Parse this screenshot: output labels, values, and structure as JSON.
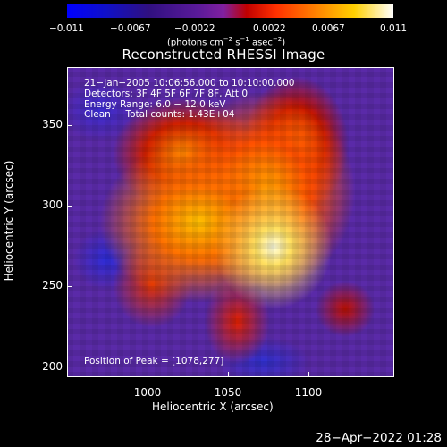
{
  "colorbar": {
    "ticks": [
      "−0.011",
      "−0.0067",
      "−0.0022",
      "0.0022",
      "0.0067",
      "0.011"
    ],
    "units_prefix": "(photons cm",
    "units_sup1": "−2",
    "units_mid": " s",
    "units_sup2": "−1",
    "units_mid2": " asec",
    "units_sup3": "−2",
    "units_suffix": ")"
  },
  "title": "Reconstructed RHESSI Image",
  "info": {
    "line1": "21−Jan−2005 10:06:56.000 to 10:10:00.000",
    "line2": "Detectors: 3F 4F 5F 6F 7F 8F, Att 0",
    "line3": "Energy Range: 6.0 − 12.0 keV",
    "line4": "Clean     Total counts: 1.43E+04"
  },
  "peak": "Position of Peak = [1078,277]",
  "axes": {
    "x_ticks": [
      "1000",
      "1050",
      "1100"
    ],
    "y_ticks": [
      "350",
      "300",
      "250",
      "200"
    ],
    "xlabel": "Heliocentric X (arcsec)",
    "ylabel": "Heliocentric Y (arcsec)"
  },
  "timestamp": "28−Apr−2022 01:28"
}
